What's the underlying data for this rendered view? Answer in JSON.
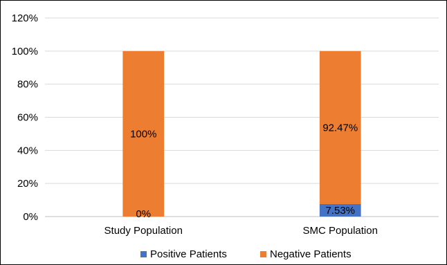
{
  "chart_data": {
    "type": "bar",
    "stacked": true,
    "title": "",
    "xlabel": "",
    "ylabel": "",
    "categories": [
      "Study Population",
      "SMC Population"
    ],
    "series": [
      {
        "name": "Positive Patients",
        "color": "#4472c4",
        "values": [
          0,
          7.53
        ],
        "labels": [
          "0%",
          "7.53%"
        ]
      },
      {
        "name": "Negative Patients",
        "color": "#ed7d31",
        "values": [
          100,
          92.47
        ],
        "labels": [
          "100%",
          "92.47%"
        ]
      }
    ],
    "ylim": [
      0,
      120
    ],
    "yticks": [
      0,
      20,
      40,
      60,
      80,
      100,
      120
    ],
    "ytick_labels": [
      "0%",
      "20%",
      "40%",
      "60%",
      "80%",
      "100%",
      "120%"
    ],
    "grid": true,
    "legend_position": "bottom"
  }
}
